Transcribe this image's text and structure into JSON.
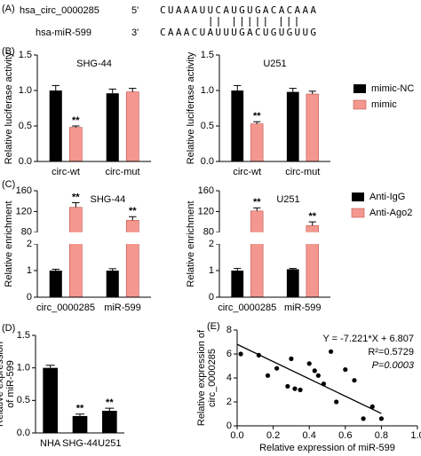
{
  "panel_labels": [
    "(A)",
    "(B)",
    "(C)",
    "(D)",
    "(E)"
  ],
  "alignment": {
    "top_name": "hsa_circ_0000285",
    "top_end": "5'",
    "top_seq": "CUAAAUUCAUGUGACACAAA",
    "bottom_name": "hsa-miR-599",
    "bottom_end": "3'",
    "bottom_seq": "CAAACUAUUUGACUGUGUUG"
  },
  "chart_data": [
    {
      "type": "bar",
      "title": "SHG-44",
      "ylabel": "Relative luciferase activity",
      "categories": [
        "circ-wt",
        "circ-mut"
      ],
      "series": [
        {
          "color": "#000000",
          "values": [
            1.0,
            0.96
          ],
          "errors": [
            0.07,
            0.06
          ]
        },
        {
          "color": "#f4978e",
          "values": [
            0.48,
            0.98
          ],
          "errors": [
            0.02,
            0.05
          ]
        }
      ],
      "ylim": [
        0,
        1.5
      ],
      "yticks": [
        {
          "value": 0,
          "label": "0.0"
        },
        {
          "value": 0.5,
          "label": "0.5"
        },
        {
          "value": 1,
          "label": "1.0"
        },
        {
          "value": 1.5,
          "label": "1.5"
        }
      ],
      "annotations": [
        {
          "text": "**",
          "series": 1,
          "index": 0
        }
      ]
    },
    {
      "type": "bar",
      "title": "U251",
      "ylabel": "Relative luciferase activity",
      "categories": [
        "circ-wt",
        "circ-mut"
      ],
      "legend": "right",
      "series": [
        {
          "name": "mimic-NC",
          "color": "#000000",
          "values": [
            1.0,
            0.98
          ],
          "errors": [
            0.07,
            0.05
          ]
        },
        {
          "name": "mimic",
          "color": "#f4978e",
          "values": [
            0.53,
            0.95
          ],
          "errors": [
            0.03,
            0.04
          ]
        }
      ],
      "ylim": [
        0,
        1.5
      ],
      "yticks": [
        {
          "value": 0,
          "label": "0.0"
        },
        {
          "value": 0.5,
          "label": "0.5"
        },
        {
          "value": 1,
          "label": "1.0"
        },
        {
          "value": 1.5,
          "label": "1.5"
        }
      ],
      "annotations": [
        {
          "text": "**",
          "series": 1,
          "index": 0
        }
      ]
    },
    {
      "type": "bar",
      "title": "SHG-44",
      "ylabel": "Relative enrichment",
      "categories": [
        "circ_0000285",
        "miR-599"
      ],
      "series": [
        {
          "color": "#000000",
          "values": [
            1.0,
            1.0
          ],
          "errors": [
            0.05,
            0.07
          ]
        },
        {
          "color": "#f4978e",
          "values": [
            128,
            103
          ],
          "errors": [
            9,
            7
          ]
        }
      ],
      "ylim": [
        0,
        160
      ],
      "axis_break": [
        2,
        80
      ],
      "yticks": [
        0,
        1,
        2,
        80,
        120,
        160
      ],
      "annotations": [
        {
          "text": "**",
          "series": 1,
          "index": 0
        },
        {
          "text": "**",
          "series": 1,
          "index": 1
        }
      ]
    },
    {
      "type": "bar",
      "title": "U251",
      "ylabel": "Relative enrichment",
      "categories": [
        "circ_0000285",
        "miR-599"
      ],
      "legend": "right",
      "series": [
        {
          "name": "Anti-IgG",
          "color": "#000000",
          "values": [
            1.0,
            1.05
          ],
          "errors": [
            0.08,
            0.03
          ]
        },
        {
          "name": "Anti-Ago2",
          "color": "#f4978e",
          "values": [
            121,
            93
          ],
          "errors": [
            6,
            7
          ]
        }
      ],
      "ylim": [
        0,
        160
      ],
      "axis_break": [
        2,
        80
      ],
      "yticks": [
        0,
        1,
        2,
        80,
        120,
        160
      ],
      "annotations": [
        {
          "text": "**",
          "series": 1,
          "index": 0
        },
        {
          "text": "**",
          "series": 1,
          "index": 1
        }
      ]
    },
    {
      "type": "bar",
      "ylabel_lines": [
        "Relative expression",
        "of miR-599"
      ],
      "categories": [
        "NHA",
        "SHG-44",
        "U251"
      ],
      "series": [
        {
          "color": "#000000",
          "values": [
            1.0,
            0.26,
            0.34
          ],
          "errors": [
            0.04,
            0.03,
            0.04
          ]
        }
      ],
      "ylim": [
        0,
        1.5
      ],
      "yticks": [
        {
          "value": 0,
          "label": "0.0"
        },
        {
          "value": 0.5,
          "label": "0.5"
        },
        {
          "value": 1,
          "label": "1.0"
        },
        {
          "value": 1.5,
          "label": "1.5"
        }
      ],
      "annotations": [
        {
          "text": "**",
          "series": 0,
          "index": 1
        },
        {
          "text": "**",
          "series": 0,
          "index": 2
        }
      ]
    },
    {
      "type": "scatter",
      "xlabel": "Relative expression of miR-599",
      "ylabel_lines": [
        "Relative expression of",
        "circ_0000285"
      ],
      "x": [
        0.02,
        0.12,
        0.17,
        0.22,
        0.28,
        0.3,
        0.32,
        0.35,
        0.4,
        0.43,
        0.45,
        0.48,
        0.52,
        0.55,
        0.6,
        0.65,
        0.7,
        0.75,
        0.8
      ],
      "y": [
        6.0,
        5.9,
        4.2,
        4.8,
        3.3,
        5.6,
        3.1,
        3.0,
        5.2,
        4.6,
        4.2,
        3.5,
        6.2,
        2.0,
        4.7,
        3.8,
        0.6,
        1.6,
        0.6
      ],
      "color": "#000000",
      "xlim": [
        0,
        1
      ],
      "xticks": [
        {
          "value": 0,
          "label": "0.0"
        },
        {
          "value": 0.2,
          "label": "0.2"
        },
        {
          "value": 0.4,
          "label": "0.4"
        },
        {
          "value": 0.6,
          "label": "0.6"
        },
        {
          "value": 0.8,
          "label": "0.8"
        },
        {
          "value": 1,
          "label": "1.0"
        }
      ],
      "ylim": [
        0,
        8
      ],
      "yticks": [
        0,
        2,
        4,
        6,
        8
      ],
      "fit": {
        "slope": -7.221,
        "intercept": 6.807
      },
      "fit_label": "Y = -7.221*X + 6.807",
      "r2_label": "R²=0.5729",
      "p_label": "P=0.0003"
    }
  ]
}
